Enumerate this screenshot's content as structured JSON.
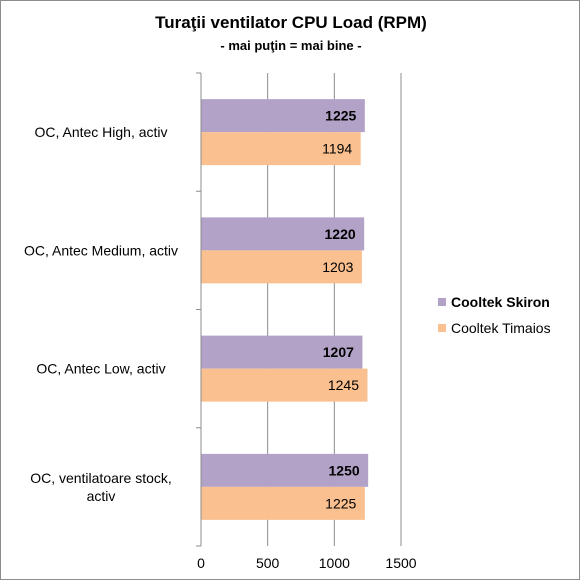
{
  "chart_data": {
    "type": "bar",
    "orientation": "horizontal",
    "title": "Turaţii ventilator CPU Load (RPM)",
    "subtitle": "- mai puţin = mai bine -",
    "categories": [
      "OC, Antec High, activ",
      "OC, Antec Medium, activ",
      "OC, Antec Low, activ",
      "OC, ventilatoare stock, activ"
    ],
    "category_lines": [
      [
        "OC, Antec High, activ"
      ],
      [
        "OC, Antec Medium, activ"
      ],
      [
        "OC, Antec Low, activ"
      ],
      [
        "OC, ventilatoare stock,",
        "activ"
      ]
    ],
    "series": [
      {
        "name": "Cooltek Skiron",
        "values": [
          1225,
          1220,
          1207,
          1250
        ],
        "color": "#b3a2c7",
        "label_bold": true
      },
      {
        "name": "Cooltek Timaios",
        "values": [
          1194,
          1203,
          1245,
          1225
        ],
        "color": "#fac090",
        "label_bold": false
      }
    ],
    "xlim": [
      0,
      1500
    ],
    "xticks": [
      0,
      500,
      1000,
      1500
    ],
    "xgrid": true,
    "legend_position": "right"
  }
}
